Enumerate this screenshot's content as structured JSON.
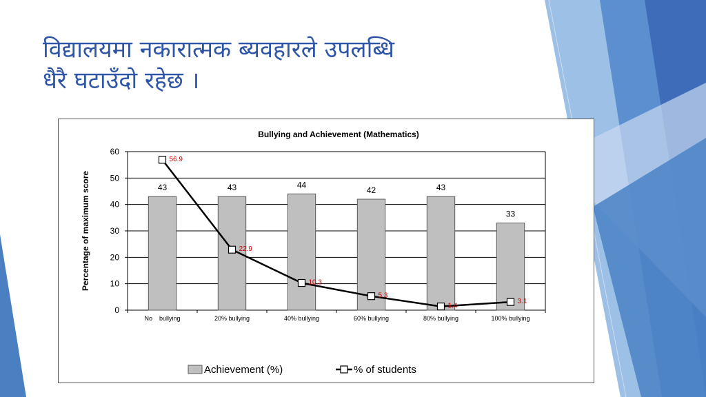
{
  "slide": {
    "title_line1": "विद्यालयमा नकारात्मक ब्यवहारले उपलब्धि",
    "title_line2": "धैरै घटाउँदो रहेछ ।"
  },
  "colors": {
    "title": "#2f55a6",
    "bar_fill": "#bfbfbf",
    "line": "#000000",
    "line_label": "#cc0000",
    "deco_blue": "#4a7fc1"
  },
  "chart_data": {
    "type": "bar",
    "title": "Bullying and Achievement  (Mathematics)",
    "xlabel": "",
    "ylabel": "Percentage of maximum score",
    "ylim": [
      0,
      60
    ],
    "yticks": [
      0,
      10,
      20,
      30,
      40,
      50,
      60
    ],
    "grid": true,
    "legend_position": "bottom",
    "categories": [
      "No    bullying",
      "20% bullying",
      "40% bullying",
      "60% bullying",
      "80% bullying",
      "100% bullying"
    ],
    "series": [
      {
        "name": "Achievement (%)",
        "type": "bar",
        "values": [
          43,
          43,
          44,
          42,
          43,
          33
        ],
        "labels": [
          "43",
          "43",
          "44",
          "42",
          "43",
          "33"
        ]
      },
      {
        "name": "% of students",
        "type": "line",
        "values": [
          56.9,
          22.9,
          10.3,
          5.3,
          1.4,
          3.1
        ],
        "labels": [
          "56.9",
          "22.9",
          "10.3",
          "5.3",
          "1.4",
          "3.1"
        ]
      }
    ]
  }
}
